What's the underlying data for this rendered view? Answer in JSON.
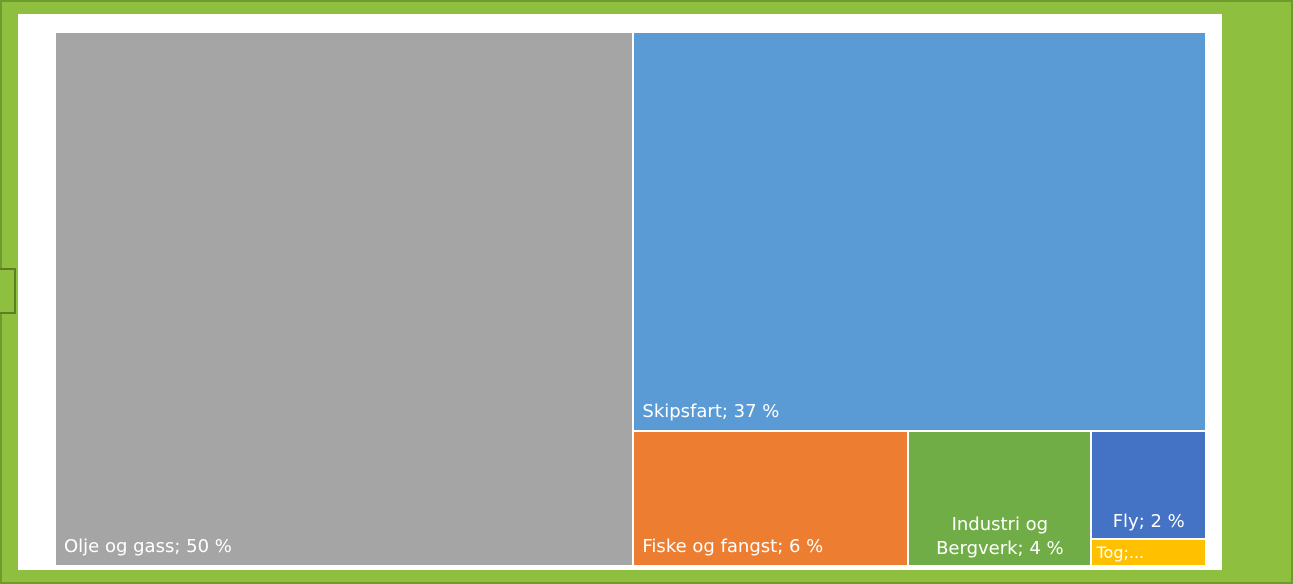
{
  "chart_data": {
    "type": "treemap",
    "labels": [
      "Olje og gass; 50 %",
      "Skipsfart; 37 %",
      "Fiske og fangst; 6 %",
      "Industri og Bergverk; 4 %",
      "Fly; 2 %",
      "Tog;..."
    ],
    "values": [
      50,
      37,
      6,
      4,
      2,
      0.5
    ],
    "colors": [
      "#a5a5a5",
      "#5b9bd5",
      "#ed7d31",
      "#70ad47",
      "#4472c4",
      "#ffc000"
    ]
  }
}
